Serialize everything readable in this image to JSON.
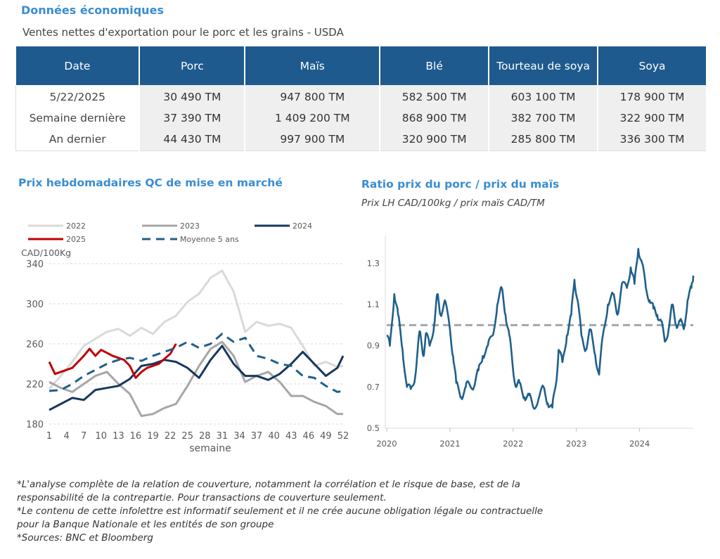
{
  "header": {
    "title": "Données économiques",
    "subtitle": "Ventes nettes d'exportation pour le porc et les grains - USDA"
  },
  "exports_table": {
    "columns": [
      "Date",
      "Porc",
      "Maïs",
      "Blé",
      "Tourteau de soya",
      "Soya"
    ],
    "rows": [
      [
        "5/22/2025",
        "30 490 TM",
        "947 800 TM",
        "582 500 TM",
        "603 100 TM",
        "178 900 TM"
      ],
      [
        "Semaine dernière",
        "37 390 TM",
        "1 409 200 TM",
        "868 900 TM",
        "382 700 TM",
        "322 900 TM"
      ],
      [
        "An dernier",
        "44 430 TM",
        "997 900 TM",
        "320 900 TM",
        "285 800 TM",
        "336 300 TM"
      ]
    ]
  },
  "chart_data": [
    {
      "type": "line",
      "title": "Prix hebdomadaires QC de mise en marché",
      "ylabel": "CAD/100Kg",
      "xlabel": "semaine",
      "xlim": [
        1,
        52
      ],
      "ylim": [
        180,
        340
      ],
      "yticks": [
        180,
        220,
        260,
        300,
        340
      ],
      "xticks": [
        1,
        4,
        7,
        10,
        13,
        16,
        19,
        22,
        25,
        28,
        31,
        34,
        37,
        40,
        43,
        46,
        49,
        52
      ],
      "grid": "horizontal",
      "legend": "top",
      "series": [
        {
          "name": "2022",
          "color": "#d9d9d9",
          "dash": false,
          "width": 3,
          "x": [
            1,
            3,
            5,
            7,
            9,
            11,
            13,
            15,
            17,
            19,
            21,
            23,
            25,
            27,
            29,
            31,
            33,
            35,
            37,
            39,
            41,
            43,
            45,
            47,
            49,
            51,
            52
          ],
          "values": [
            215,
            228,
            242,
            258,
            265,
            272,
            275,
            268,
            276,
            270,
            282,
            288,
            302,
            310,
            326,
            333,
            312,
            272,
            282,
            278,
            280,
            276,
            258,
            238,
            242,
            237,
            238
          ]
        },
        {
          "name": "2023",
          "color": "#a6a6a6",
          "dash": false,
          "width": 3,
          "x": [
            1,
            3,
            5,
            7,
            9,
            11,
            13,
            15,
            17,
            19,
            21,
            23,
            25,
            27,
            29,
            31,
            33,
            35,
            37,
            39,
            41,
            43,
            45,
            47,
            49,
            51,
            52
          ],
          "values": [
            222,
            216,
            212,
            220,
            228,
            232,
            220,
            210,
            188,
            190,
            196,
            200,
            218,
            238,
            255,
            262,
            248,
            222,
            228,
            232,
            222,
            208,
            208,
            202,
            198,
            190,
            190
          ]
        },
        {
          "name": "2024",
          "color": "#17375e",
          "dash": false,
          "width": 3,
          "x": [
            1,
            3,
            5,
            7,
            9,
            11,
            13,
            15,
            17,
            19,
            21,
            23,
            25,
            27,
            29,
            31,
            33,
            35,
            37,
            39,
            41,
            43,
            45,
            47,
            49,
            51,
            52
          ],
          "values": [
            194,
            200,
            206,
            204,
            214,
            216,
            218,
            225,
            238,
            240,
            244,
            242,
            236,
            226,
            244,
            258,
            240,
            228,
            228,
            224,
            230,
            240,
            252,
            240,
            228,
            236,
            248
          ]
        },
        {
          "name": "2025",
          "color": "#c00000",
          "dash": false,
          "width": 3,
          "x": [
            1,
            2,
            3,
            5,
            7,
            8,
            9,
            10,
            12,
            14,
            15,
            16,
            17,
            18,
            20,
            22,
            23
          ],
          "values": [
            242,
            230,
            232,
            236,
            248,
            255,
            248,
            254,
            248,
            244,
            238,
            226,
            232,
            236,
            240,
            250,
            260
          ]
        },
        {
          "name": "Moyenne 5 ans",
          "color": "#1f5f8b",
          "dash": true,
          "width": 3,
          "x": [
            1,
            3,
            5,
            7,
            9,
            11,
            13,
            15,
            17,
            19,
            21,
            23,
            25,
            27,
            29,
            31,
            33,
            35,
            37,
            39,
            41,
            43,
            45,
            47,
            49,
            51,
            52
          ],
          "values": [
            213,
            214,
            220,
            228,
            234,
            240,
            244,
            246,
            243,
            248,
            252,
            256,
            262,
            256,
            260,
            270,
            262,
            266,
            248,
            245,
            240,
            238,
            228,
            226,
            218,
            212,
            213
          ]
        }
      ]
    },
    {
      "type": "line",
      "title": "Ratio prix du porc / prix du maïs",
      "subtitle": "Prix LH CAD/100kg / prix maïs CAD/TM",
      "xlim": [
        2020.0,
        2024.85
      ],
      "ylim": [
        0.5,
        1.4
      ],
      "yticks": [
        0.5,
        0.7,
        0.9,
        1.1,
        1.3
      ],
      "ytick_labels": [
        "0.5",
        "0.7",
        "0.9",
        "1.1",
        "1.3"
      ],
      "xticks": [
        2020,
        2021,
        2022,
        2023,
        2024
      ],
      "reference_line": {
        "value": 1.0,
        "color": "#a6a6a6",
        "dash": true
      },
      "grid": "none",
      "series": [
        {
          "color": "#1f5f8b",
          "x": [
            2020.0,
            2020.05,
            2020.12,
            2020.18,
            2020.25,
            2020.32,
            2020.38,
            2020.45,
            2020.52,
            2020.58,
            2020.62,
            2020.68,
            2020.75,
            2020.8,
            2020.85,
            2020.92,
            2021.0,
            2021.05,
            2021.1,
            2021.18,
            2021.25,
            2021.3,
            2021.38,
            2021.45,
            2021.52,
            2021.6,
            2021.68,
            2021.75,
            2021.82,
            2021.88,
            2021.94,
            2022.0,
            2022.05,
            2022.1,
            2022.18,
            2022.25,
            2022.32,
            2022.4,
            2022.48,
            2022.55,
            2022.62,
            2022.68,
            2022.72,
            2022.78,
            2022.85,
            2022.92,
            2022.97,
            2023.02,
            2023.08,
            2023.15,
            2023.22,
            2023.3,
            2023.36,
            2023.42,
            2023.5,
            2023.58,
            2023.65,
            2023.72,
            2023.8,
            2023.86,
            2023.92,
            2023.98,
            2024.04,
            2024.1,
            2024.16,
            2024.22,
            2024.28,
            2024.34,
            2024.4,
            2024.46,
            2024.52,
            2024.58,
            2024.64,
            2024.7,
            2024.76,
            2024.82,
            2024.85
          ],
          "values": [
            0.95,
            0.9,
            1.15,
            1.05,
            0.88,
            0.7,
            0.69,
            0.75,
            0.97,
            0.85,
            0.96,
            0.9,
            1.0,
            1.15,
            1.05,
            1.12,
            0.98,
            0.85,
            0.72,
            0.65,
            0.7,
            0.72,
            0.7,
            0.78,
            0.85,
            0.9,
            0.95,
            1.1,
            1.18,
            1.05,
            0.95,
            0.78,
            0.7,
            0.72,
            0.65,
            0.66,
            0.6,
            0.64,
            0.7,
            0.62,
            0.6,
            0.72,
            0.88,
            0.82,
            0.95,
            1.05,
            1.22,
            1.12,
            0.95,
            0.88,
            0.98,
            0.85,
            0.76,
            0.95,
            1.1,
            1.15,
            1.05,
            1.2,
            1.18,
            1.28,
            1.2,
            1.37,
            1.3,
            1.18,
            1.12,
            1.08,
            1.05,
            1.02,
            0.92,
            0.98,
            1.1,
            1.0,
            1.02,
            0.98,
            1.12,
            1.18,
            1.24
          ]
        }
      ]
    }
  ],
  "footnotes": [
    "*L'analyse complète de la relation de couverture, notamment la corrélation et le risque de base, est de la",
    "responsabilité de la contrepartie. Pour transactions de couverture seulement.",
    "*Le contenu de cette infolettre est informatif seulement et il ne crée aucune obligation légale ou contractuelle",
    "pour la Banque Nationale et les entités de son groupe",
    "*Sources: BNC et Bloomberg"
  ]
}
